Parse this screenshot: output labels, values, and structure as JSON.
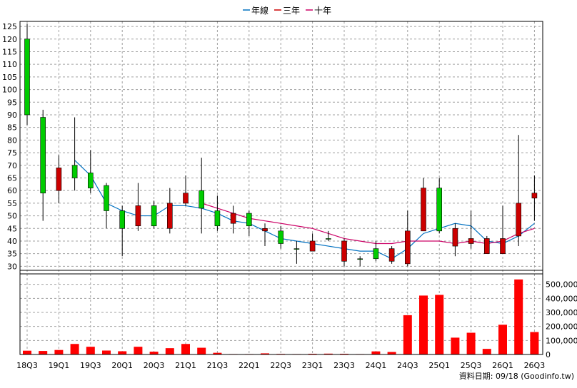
{
  "colors": {
    "background": "#ffffff",
    "grid": "#a0a0a0",
    "frame": "#000000",
    "candle_up": "#00cc00",
    "candle_down": "#cc0000",
    "candle_wick": "#000000",
    "volume": "#ff0000",
    "annual_line": "#0070c0",
    "three_year_line": "#cc0000",
    "ten_year_line": "#cc0066"
  },
  "legend": [
    {
      "label": "年線",
      "color": "#0070c0"
    },
    {
      "label": "三年",
      "color": "#cc0000"
    },
    {
      "label": "十年",
      "color": "#cc0066"
    }
  ],
  "source": "資料日期: 09/18  (Goodinfo.tw)",
  "chart_data": [
    {
      "type": "candlestick",
      "title": "",
      "ylim": [
        27,
        127
      ],
      "yticks": [
        30,
        35,
        40,
        45,
        50,
        55,
        60,
        65,
        70,
        75,
        80,
        85,
        90,
        95,
        100,
        105,
        110,
        115,
        120,
        125
      ],
      "grid": true,
      "legend_position": "top-center",
      "x_tick_labels": [
        "18Q3",
        "19Q1",
        "19Q3",
        "20Q1",
        "20Q3",
        "21Q1",
        "21Q3",
        "22Q1",
        "22Q3",
        "23Q1",
        "23Q3",
        "24Q1",
        "24Q3",
        "25Q1",
        "25Q3",
        "26Q1",
        "26Q3"
      ],
      "candles": [
        {
          "o": 90,
          "h": 126,
          "l": 86,
          "c": 120
        },
        {
          "o": 59,
          "h": 92,
          "l": 48,
          "c": 89
        },
        {
          "o": 69,
          "h": 74,
          "l": 55,
          "c": 60
        },
        {
          "o": 65,
          "h": 89,
          "l": 60,
          "c": 70
        },
        {
          "o": 61,
          "h": 76,
          "l": 59,
          "c": 67
        },
        {
          "o": 52,
          "h": 63,
          "l": 45,
          "c": 62
        },
        {
          "o": 45,
          "h": 54,
          "l": 34,
          "c": 52
        },
        {
          "o": 54,
          "h": 63,
          "l": 44,
          "c": 46
        },
        {
          "o": 46,
          "h": 56,
          "l": 45,
          "c": 54
        },
        {
          "o": 55,
          "h": 61,
          "l": 43,
          "c": 45
        },
        {
          "o": 59,
          "h": 66,
          "l": 54,
          "c": 55
        },
        {
          "o": 53,
          "h": 73,
          "l": 43,
          "c": 60
        },
        {
          "o": 46,
          "h": 58,
          "l": 44,
          "c": 52
        },
        {
          "o": 51,
          "h": 54,
          "l": 43,
          "c": 47
        },
        {
          "o": 46,
          "h": 52,
          "l": 42,
          "c": 51
        },
        {
          "o": 45,
          "h": 47,
          "l": 38,
          "c": 44
        },
        {
          "o": 39,
          "h": 46,
          "l": 37,
          "c": 44
        },
        {
          "o": 37,
          "h": 40,
          "l": 31,
          "c": 37
        },
        {
          "o": 40,
          "h": 43,
          "l": 36,
          "c": 36
        },
        {
          "o": 41,
          "h": 44,
          "l": 40,
          "c": 41
        },
        {
          "o": 40,
          "h": 41,
          "l": 30,
          "c": 32
        },
        {
          "o": 33,
          "h": 34,
          "l": 30,
          "c": 33
        },
        {
          "o": 33,
          "h": 40,
          "l": 32,
          "c": 37
        },
        {
          "o": 37,
          "h": 38,
          "l": 31,
          "c": 32
        },
        {
          "o": 44,
          "h": 52,
          "l": 30,
          "c": 31
        },
        {
          "o": 61,
          "h": 65,
          "l": 44,
          "c": 44
        },
        {
          "o": 44,
          "h": 65,
          "l": 43,
          "c": 61
        },
        {
          "o": 45,
          "h": 47,
          "l": 34,
          "c": 38
        },
        {
          "o": 41,
          "h": 52,
          "l": 37,
          "c": 39
        },
        {
          "o": 41,
          "h": 42,
          "l": 35,
          "c": 35
        },
        {
          "o": 41,
          "h": 54,
          "l": 35,
          "c": 35
        },
        {
          "o": 55,
          "h": 82,
          "l": 38,
          "c": 42
        },
        {
          "o": 59,
          "h": 66,
          "l": 48,
          "c": 57
        }
      ],
      "series": [
        {
          "name": "年線",
          "values": [
            null,
            null,
            null,
            72,
            66,
            55,
            52,
            50,
            50,
            54,
            54,
            53,
            51,
            48,
            47,
            44,
            41,
            40,
            39,
            38,
            37,
            36,
            36,
            33,
            37,
            43,
            45,
            47,
            46,
            40,
            39,
            42,
            47
          ]
        },
        {
          "name": "三年",
          "values": [
            null,
            null,
            null,
            null,
            null,
            null,
            null,
            null,
            null,
            null,
            null,
            null,
            null,
            null,
            null,
            null,
            null,
            null,
            null,
            null,
            null,
            null,
            null,
            null,
            null,
            null,
            null,
            null,
            null,
            null,
            null,
            null,
            null
          ]
        },
        {
          "name": "十年",
          "values": [
            null,
            null,
            null,
            null,
            null,
            null,
            null,
            null,
            null,
            null,
            null,
            55,
            53,
            51,
            49,
            48,
            47,
            46,
            45,
            43,
            41,
            40,
            39,
            39,
            40,
            40,
            40,
            39,
            40,
            39,
            40,
            43,
            45
          ]
        }
      ]
    },
    {
      "type": "bar",
      "title": "",
      "ylim": [
        0,
        600000
      ],
      "yticks": [
        0,
        100000,
        200000,
        300000,
        400000,
        500000
      ],
      "ytick_labels": [
        "0",
        "100,000",
        "200,000",
        "300,000",
        "400,000",
        "500,000"
      ],
      "grid": true,
      "values": [
        27000,
        25000,
        32000,
        75000,
        55000,
        28000,
        23000,
        55000,
        20000,
        45000,
        75000,
        48000,
        12000,
        3000,
        3000,
        8000,
        4000,
        3000,
        5000,
        6000,
        5000,
        3000,
        22000,
        18000,
        280000,
        420000,
        425000,
        120000,
        155000,
        40000,
        212000,
        535000,
        160000
      ]
    }
  ]
}
